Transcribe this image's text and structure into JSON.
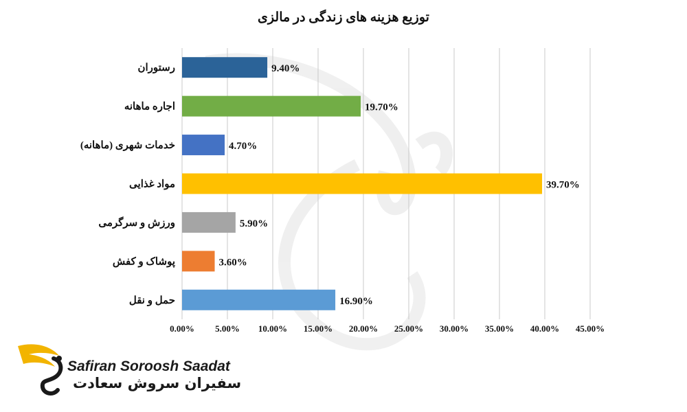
{
  "chart_data": {
    "type": "bar",
    "orientation": "horizontal",
    "title": "توزیع هزینه های زندگی در مالزی",
    "categories": [
      "رستوران",
      "اجاره ماهانه",
      "خدمات شهری (ماهانه)",
      "مواد غذایی",
      "ورزش و سرگرمی",
      "پوشاک و کفش",
      "حمل و نقل"
    ],
    "values": [
      9.4,
      19.7,
      4.7,
      39.7,
      5.9,
      3.6,
      16.9
    ],
    "value_labels": [
      "9.40%",
      "19.70%",
      "4.70%",
      "39.70%",
      "5.90%",
      "3.60%",
      "16.90%"
    ],
    "bar_colors": [
      "#2b6398",
      "#72ad46",
      "#4472c4",
      "#ffc000",
      "#a5a5a5",
      "#ed7d31",
      "#5b9bd5"
    ],
    "xlim": [
      0,
      45
    ],
    "x_ticks": [
      "0.00%",
      "5.00%",
      "10.00%",
      "15.00%",
      "20.00%",
      "25.00%",
      "30.00%",
      "35.00%",
      "40.00%",
      "45.00%"
    ],
    "grid": true,
    "legend": "none"
  },
  "logo": {
    "en": "Safiran Soroosh Saadat",
    "fa": "سفیران سروش سعادت",
    "accent_color": "#f2b400"
  }
}
